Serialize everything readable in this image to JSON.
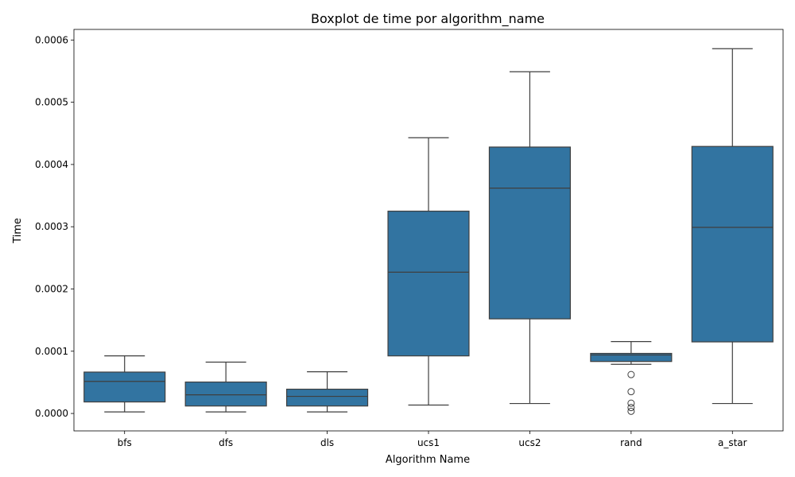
{
  "chart_data": {
    "type": "boxplot",
    "title": "Boxplot de time por algorithm_name",
    "xlabel": "Algorithm Name",
    "ylabel": "Time",
    "ylim": [
      -2.8e-05,
      0.000617
    ],
    "yticks": [
      0.0,
      0.0001,
      0.0002,
      0.0003,
      0.0004,
      0.0005,
      0.0006
    ],
    "ytick_labels": [
      "0.0000",
      "0.0001",
      "0.0002",
      "0.0003",
      "0.0004",
      "0.0005",
      "0.0006"
    ],
    "grid": false,
    "box_color": "#3274a1",
    "line_color": "#3f3f3f",
    "categories": [
      "bfs",
      "dfs",
      "dls",
      "ucs1",
      "ucs2",
      "rand",
      "a_star"
    ],
    "boxes": [
      {
        "category": "bfs",
        "whislo": 2.5e-06,
        "q1": 1.85e-05,
        "med": 5.15e-05,
        "q3": 6.65e-05,
        "whishi": 9.25e-05,
        "fliers": []
      },
      {
        "category": "dfs",
        "whislo": 2.5e-06,
        "q1": 1.2e-05,
        "med": 3e-05,
        "q3": 5.05e-05,
        "whishi": 8.25e-05,
        "fliers": []
      },
      {
        "category": "dls",
        "whislo": 2.5e-06,
        "q1": 1.2e-05,
        "med": 2.75e-05,
        "q3": 3.9e-05,
        "whishi": 6.7e-05,
        "fliers": []
      },
      {
        "category": "ucs1",
        "whislo": 1.35e-05,
        "q1": 9.25e-05,
        "med": 0.000227,
        "q3": 0.000325,
        "whishi": 0.000443,
        "fliers": []
      },
      {
        "category": "ucs2",
        "whislo": 1.6e-05,
        "q1": 0.000152,
        "med": 0.000362,
        "q3": 0.000428,
        "whishi": 0.000549,
        "fliers": []
      },
      {
        "category": "rand",
        "whislo": 7.9e-05,
        "q1": 8.35e-05,
        "med": 9.4e-05,
        "q3": 9.65e-05,
        "whishi": 0.0001155,
        "fliers": [
          6.25e-05,
          3.5e-05,
          1.65e-05,
          9.5e-06,
          3.5e-06
        ]
      },
      {
        "category": "a_star",
        "whislo": 1.6e-05,
        "q1": 0.000115,
        "med": 0.000299,
        "q3": 0.000429,
        "whishi": 0.000586,
        "fliers": []
      }
    ]
  }
}
